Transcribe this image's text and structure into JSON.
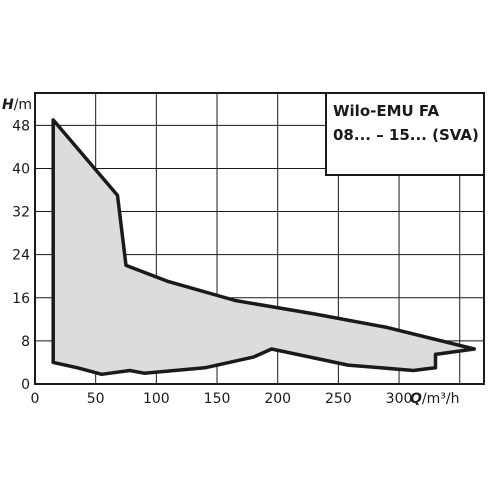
{
  "chart_data": {
    "type": "area",
    "title_lines": [
      "Wilo-EMU FA",
      "08... – 15... (SVA)"
    ],
    "xlabel": {
      "symbol": "Q",
      "unit": "/m³/h"
    },
    "ylabel": {
      "symbol": "H",
      "unit": "/m"
    },
    "x_ticks": [
      0,
      50,
      100,
      150,
      200,
      250,
      300
    ],
    "y_ticks": [
      0,
      8,
      16,
      24,
      32,
      40,
      48
    ],
    "xlim": [
      0,
      370
    ],
    "ylim": [
      0,
      54
    ],
    "grid": true,
    "fill_color": "#dcdcdc",
    "outline_color": "#1a1a1a",
    "envelope": [
      [
        15,
        49
      ],
      [
        68,
        35
      ],
      [
        75,
        22
      ],
      [
        110,
        19
      ],
      [
        165,
        15.5
      ],
      [
        230,
        13
      ],
      [
        290,
        10.5
      ],
      [
        362,
        6.5
      ],
      [
        330,
        5.5
      ],
      [
        330,
        3
      ],
      [
        322,
        2.8
      ],
      [
        312,
        2.5
      ],
      [
        258,
        3.5
      ],
      [
        195,
        6.5
      ],
      [
        180,
        5
      ],
      [
        140,
        3
      ],
      [
        90,
        2
      ],
      [
        78,
        2.5
      ],
      [
        55,
        1.8
      ],
      [
        35,
        3
      ],
      [
        15,
        4
      ],
      [
        15,
        49
      ]
    ]
  }
}
